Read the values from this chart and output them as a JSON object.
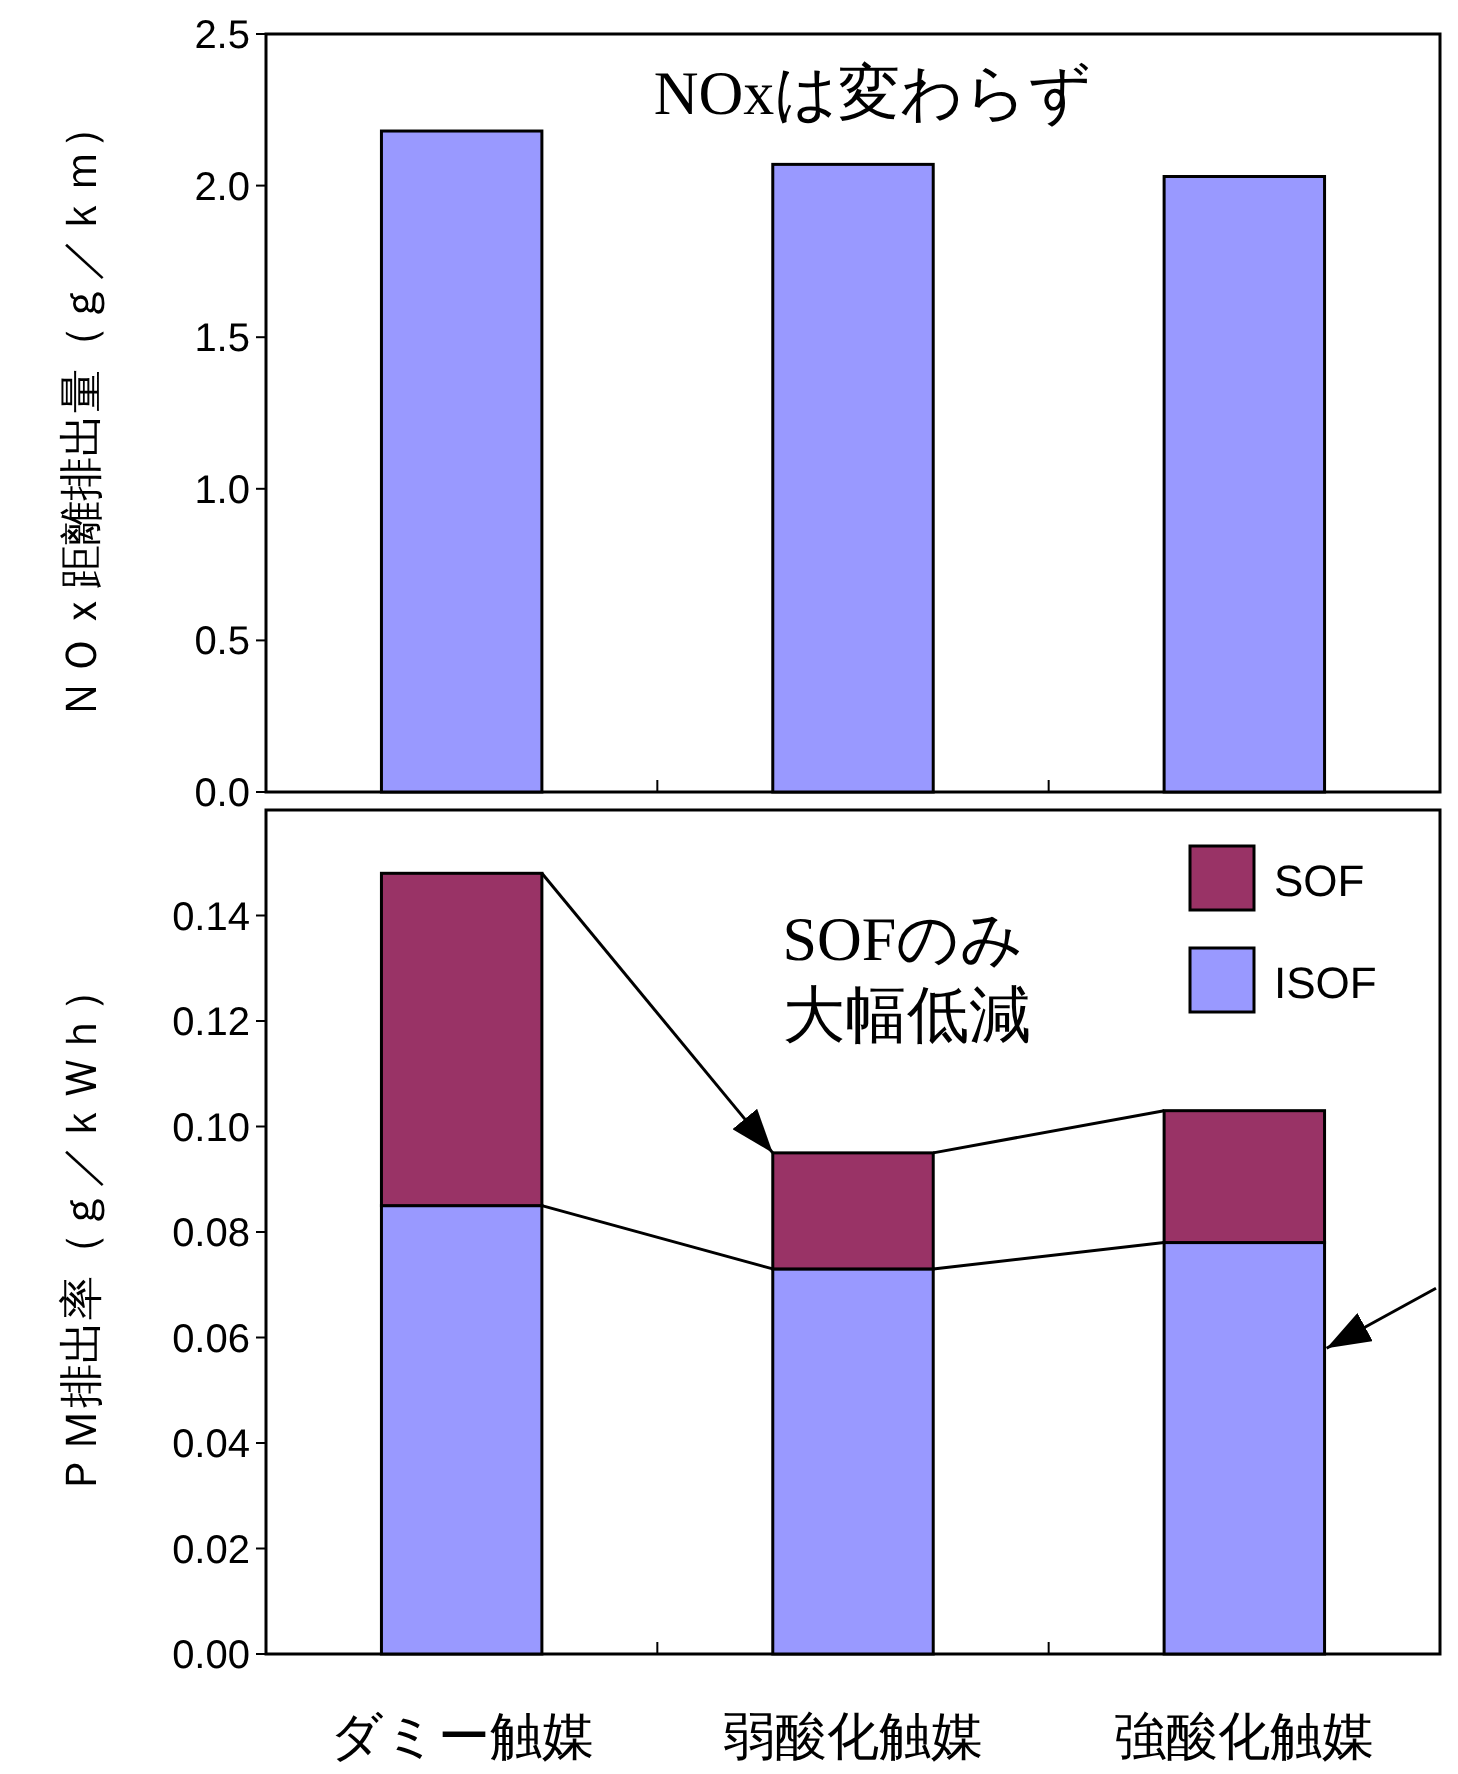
{
  "chart_data": [
    {
      "type": "bar",
      "categories": [
        null,
        null,
        null
      ],
      "values": [
        2.18,
        2.07,
        2.03
      ],
      "color": "#9999ff",
      "ylabel": "ＮＯｘ距離排出量（ｇ／ｋｍ）",
      "ylim": [
        0,
        2.5
      ],
      "yticks": [
        {
          "value": 0,
          "label": "0.0"
        },
        {
          "value": 0.5,
          "label": "0.5"
        },
        {
          "value": 1,
          "label": "1.0"
        },
        {
          "value": 1.5,
          "label": "1.5"
        },
        {
          "value": 2,
          "label": "2.0"
        },
        {
          "value": 2.5,
          "label": "2.5"
        }
      ],
      "annotations": [
        "NOxは変わらず"
      ],
      "tick_labels": "y"
    },
    {
      "type": "bar",
      "stacked": true,
      "categories": [
        "ダミー触媒",
        "弱酸化触媒",
        "強酸化触媒"
      ],
      "series": [
        {
          "name": "ISOF",
          "color": "#9999ff",
          "values": [
            0.085,
            0.073,
            0.078
          ]
        },
        {
          "name": "SOF",
          "color": "#993366",
          "values": [
            0.063,
            0.022,
            0.025
          ]
        }
      ],
      "ylabel": "ＰＭ排出率（ｇ／ｋＷｈ）",
      "ylim": [
        0,
        0.16
      ],
      "yticks": [
        {
          "value": 0,
          "label": "0.00"
        },
        {
          "value": 0.02,
          "label": "0.02"
        },
        {
          "value": 0.04,
          "label": "0.04"
        },
        {
          "value": 0.06,
          "label": "0.06"
        },
        {
          "value": 0.08,
          "label": "0.08"
        },
        {
          "value": 0.1,
          "label": "0.10"
        },
        {
          "value": 0.12,
          "label": "0.12"
        },
        {
          "value": 0.14,
          "label": "0.14"
        }
      ],
      "legend": "top right",
      "annotations": [
        "SOFのみ",
        "大幅低減"
      ]
    }
  ]
}
